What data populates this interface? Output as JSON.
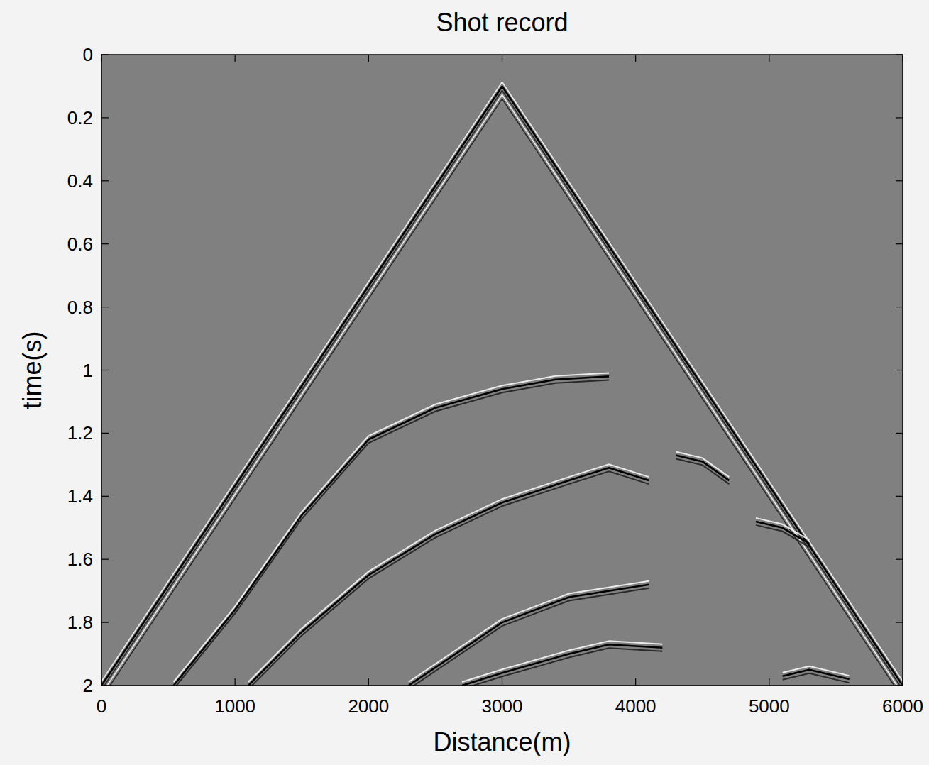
{
  "chart_data": {
    "type": "line",
    "title": "Shot record",
    "x_label": "Distance(m)",
    "y_label": "time(s)",
    "xlim": [
      0,
      6000
    ],
    "ylim": [
      0,
      2
    ],
    "xticks": [
      0,
      1000,
      2000,
      3000,
      4000,
      5000,
      6000
    ],
    "yticks": [
      0,
      0.2,
      0.4,
      0.6,
      0.8,
      1,
      1.2,
      1.4,
      1.6,
      1.8,
      2
    ],
    "grid": false,
    "series": [
      {
        "color": "#000000",
        "x": [
          0,
          3000
        ],
        "values": [
          2.0,
          0.1
        ]
      },
      {
        "color": "#000000",
        "x": [
          3000,
          6000
        ],
        "values": [
          0.1,
          2.0
        ]
      },
      {
        "color": "#000000",
        "x": [
          540,
          1000,
          1500,
          2000,
          2500,
          3000,
          3400,
          3800
        ],
        "values": [
          2.0,
          1.76,
          1.46,
          1.22,
          1.12,
          1.06,
          1.03,
          1.02
        ]
      },
      {
        "color": "#000000",
        "x": [
          1100,
          1500,
          2000,
          2500,
          3000,
          3500,
          3800,
          4100
        ],
        "values": [
          2.0,
          1.83,
          1.65,
          1.52,
          1.42,
          1.35,
          1.31,
          1.35
        ]
      },
      {
        "color": "#000000",
        "x": [
          2300,
          3000,
          3500,
          4100
        ],
        "values": [
          2.0,
          1.8,
          1.72,
          1.68
        ]
      },
      {
        "color": "#000000",
        "x": [
          2700,
          3000,
          3500,
          3800,
          4200
        ],
        "values": [
          2.0,
          1.96,
          1.9,
          1.87,
          1.88
        ]
      },
      {
        "color": "#000000",
        "x": [
          4300,
          4500,
          4700
        ],
        "values": [
          1.27,
          1.29,
          1.35
        ]
      },
      {
        "color": "#000000",
        "x": [
          4900,
          5100,
          5300
        ],
        "values": [
          1.48,
          1.5,
          1.55
        ]
      },
      {
        "color": "#000000",
        "x": [
          5100,
          5300,
          5600
        ],
        "values": [
          1.97,
          1.95,
          1.98
        ]
      }
    ]
  }
}
